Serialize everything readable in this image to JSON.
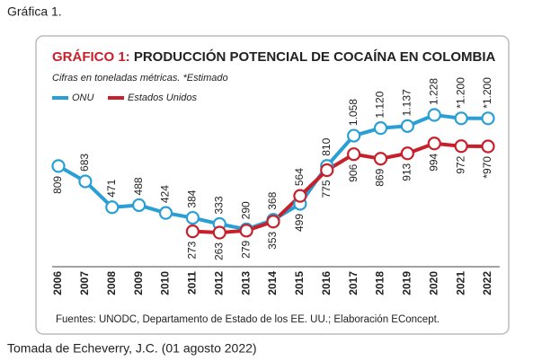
{
  "caption": "Gráfica 1.",
  "credit": "Tomada de Echeverry, J.C. (01 agosto 2022)",
  "chart_data": {
    "type": "line",
    "title_lead": "GRÁFICO 1:",
    "title": "PRODUCCIÓN POTENCIAL DE COCAÍNA EN COLOMBIA",
    "subtitle": "Cifras en toneladas métricas. *Estimado",
    "source": "Fuentes: UNODC, Departamento de Estado de los EE. UU.; Elaboración EConcept.",
    "categories": [
      "2006",
      "2007",
      "2008",
      "2009",
      "2010",
      "2011",
      "2012",
      "2013",
      "2014",
      "2015",
      "2016",
      "2017",
      "2018",
      "2019",
      "2020",
      "2021",
      "2022"
    ],
    "series": [
      {
        "name": "ONU",
        "color": "#2a9fd6",
        "values": [
          809,
          683,
          471,
          488,
          424,
          384,
          333,
          290,
          368,
          499,
          810,
          1058,
          1120,
          1137,
          1228,
          1200,
          1200
        ],
        "value_labels": [
          "809",
          "683",
          "471",
          "488",
          "424",
          "384",
          "333",
          "290",
          "368",
          "499",
          "810",
          "1.058",
          "1.120",
          "1.137",
          "1.228",
          "*1.200",
          "*1.200"
        ]
      },
      {
        "name": "Estados Unidos",
        "color": "#c8202a",
        "values": [
          null,
          null,
          null,
          null,
          null,
          273,
          263,
          279,
          353,
          564,
          775,
          906,
          869,
          913,
          994,
          972,
          970
        ],
        "value_labels": [
          null,
          null,
          null,
          null,
          null,
          "273",
          "263",
          "279",
          "353",
          "564",
          "775",
          "906",
          "869",
          "913",
          "994",
          "972",
          "*970"
        ]
      }
    ]
  }
}
